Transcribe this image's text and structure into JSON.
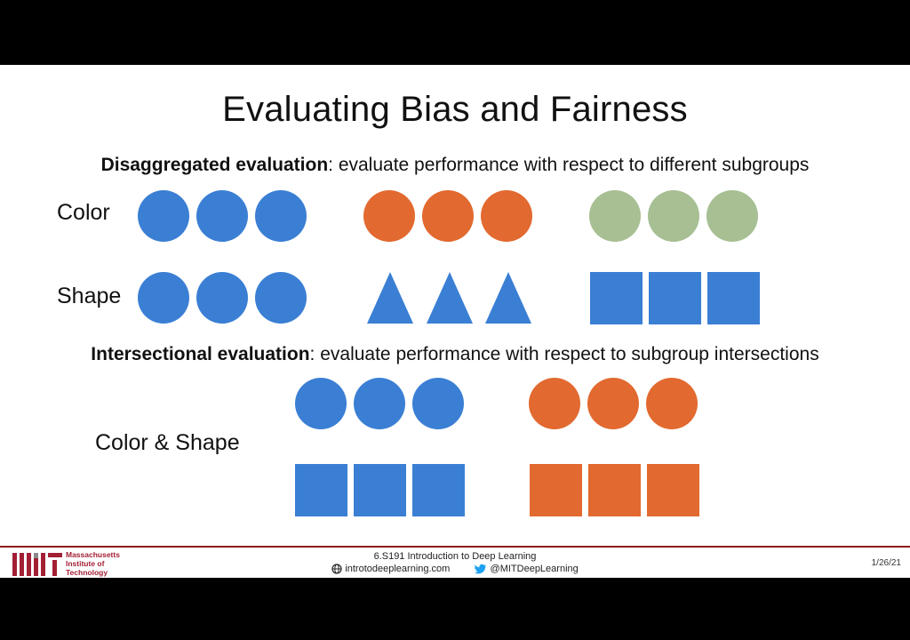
{
  "slide": {
    "title": "Evaluating Bias and Fairness",
    "disaggregated": {
      "term": "Disaggregated evaluation",
      "description": ": evaluate performance with respect to different subgroups"
    },
    "intersectional": {
      "term": "Intersectional evaluation",
      "description": ": evaluate performance with respect to subgroup intersections"
    },
    "labels": {
      "color": "Color",
      "shape": "Shape",
      "color_shape": "Color & Shape"
    }
  },
  "colors": {
    "blue": "#3a7fd4",
    "orange": "#e2692f",
    "green": "#a7bf92",
    "mit_red": "#a31f34"
  },
  "footer": {
    "institution_line1": "Massachusetts",
    "institution_line2": "Institute of",
    "institution_line3": "Technology",
    "course": "6.S191 Introduction to Deep Learning",
    "website": "introtodeeplearning.com",
    "twitter": "@MITDeepLearning",
    "date": "1/26/21",
    "icons": [
      "globe-icon",
      "twitter-bird-icon",
      "mit-logo"
    ]
  }
}
